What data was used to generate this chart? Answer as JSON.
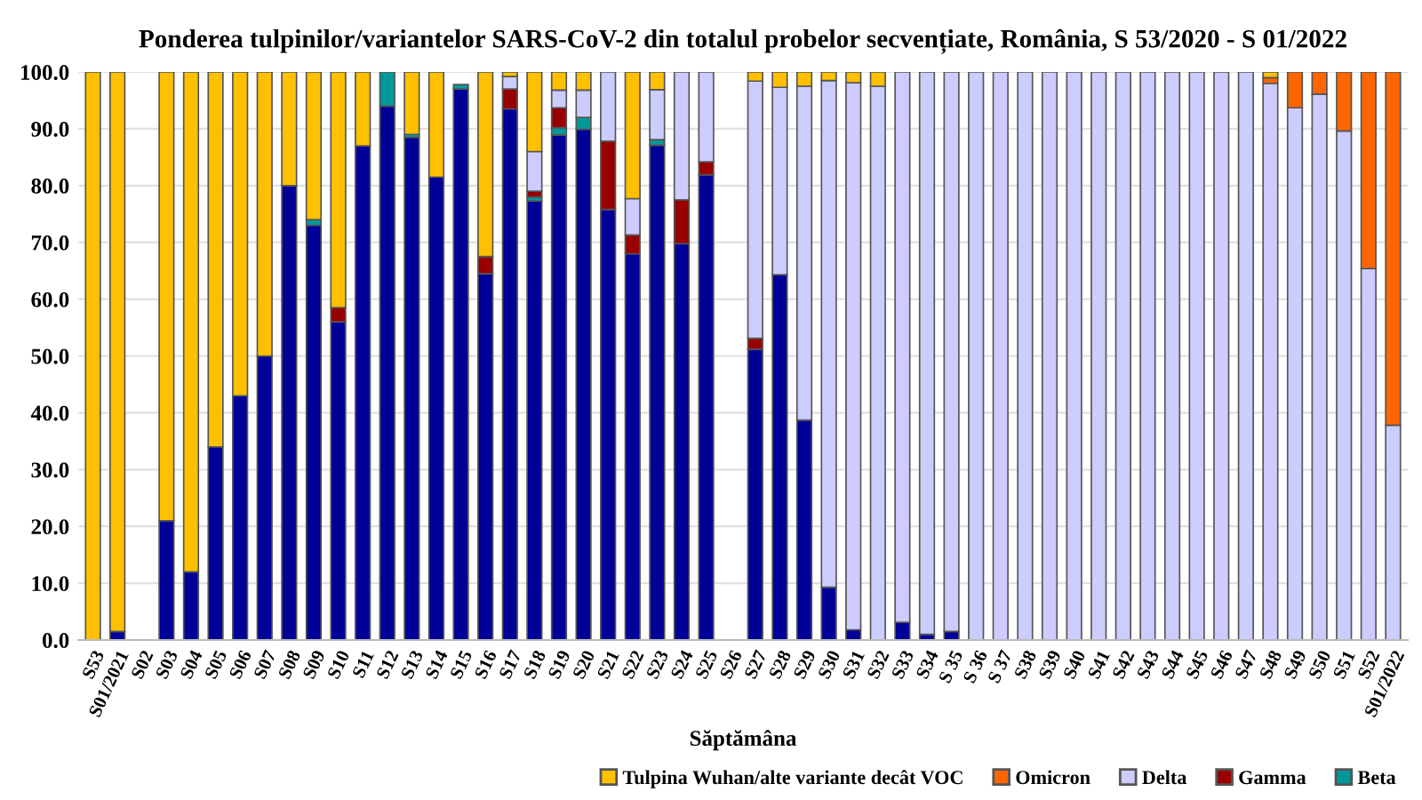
{
  "chart_data": {
    "type": "bar",
    "stacked": true,
    "title": "Ponderea tulpinilor/variantelor SARS-CoV-2 din totalul probelor secvențiate, România, S 53/2020 - S 01/2022",
    "xlabel": "Săptămâna",
    "categories": [
      "S53",
      "S01/2021",
      "S02",
      "S03",
      "S04",
      "S05",
      "S06",
      "S07",
      "S08",
      "S09",
      "S10",
      "S11",
      "S12",
      "S13",
      "S14",
      "S15",
      "S16",
      "S17",
      "S18",
      "S19",
      "S20",
      "S21",
      "S22",
      "S23",
      "S24",
      "S25",
      "S26",
      "S27",
      "S28",
      "S29",
      "S30",
      "S31",
      "S32",
      "S33",
      "S34",
      "S 35",
      "S 36",
      "S 37",
      "S38",
      "S39",
      "S40",
      "S41",
      "S42",
      "S43",
      "S44",
      "S45",
      "S46",
      "S47",
      "S48",
      "S49",
      "S50",
      "S51",
      "S52",
      "S01/2022"
    ],
    "series": [
      {
        "color": "#000099",
        "values": [
          0,
          1.5,
          null,
          21,
          12,
          34,
          43,
          50,
          80,
          73,
          56,
          87,
          94,
          88.5,
          81.5,
          97,
          64.5,
          93.5,
          77.3,
          88.9,
          89.9,
          75.8,
          68,
          87.1,
          69.8,
          81.9,
          null,
          51.2,
          64.3,
          38.7,
          9.3,
          1.8,
          0,
          3.1,
          1,
          1.5,
          0,
          0,
          0,
          0,
          0,
          0,
          0,
          0,
          0,
          0,
          0,
          0,
          0,
          0,
          0,
          0,
          0,
          0
        ]
      },
      {
        "name": "Beta",
        "color": "#009999",
        "values": [
          0,
          0,
          null,
          0,
          0,
          0,
          0,
          0,
          0,
          1,
          0,
          0,
          6,
          0.5,
          0,
          0.8,
          0,
          0,
          0.7,
          1.3,
          2.1,
          0,
          0,
          1,
          0,
          0,
          null,
          0,
          0,
          0,
          0,
          0,
          0,
          0,
          0,
          0,
          0,
          0,
          0,
          0,
          0,
          0,
          0,
          0,
          0,
          0,
          0,
          0,
          0,
          0,
          0,
          0,
          0,
          0
        ]
      },
      {
        "name": "Gamma",
        "color": "#990000",
        "values": [
          0,
          0,
          null,
          0,
          0,
          0,
          0,
          0,
          0,
          0,
          2.5,
          0,
          0,
          0,
          0,
          0,
          3,
          3.5,
          1,
          3.5,
          0,
          12,
          3.3,
          0,
          7.7,
          2.3,
          null,
          1.9,
          0,
          0,
          0,
          0,
          0,
          0,
          0,
          0,
          0,
          0,
          0,
          0,
          0,
          0,
          0,
          0,
          0,
          0,
          0,
          0,
          0,
          0,
          0,
          0,
          0,
          0
        ]
      },
      {
        "name": "Delta",
        "color": "#ccccff",
        "values": [
          0,
          0,
          null,
          0,
          0,
          0,
          0,
          0,
          0,
          0,
          0,
          0,
          0,
          0,
          0,
          0,
          0,
          2.2,
          7,
          3.1,
          4.8,
          12.2,
          6.4,
          8.8,
          22.5,
          15.8,
          null,
          45.3,
          33,
          58.8,
          89.2,
          96.3,
          97.5,
          96.9,
          99,
          98.5,
          100,
          100,
          100,
          100,
          100,
          100,
          100,
          100,
          100,
          100,
          100,
          100,
          98,
          93.7,
          96.1,
          89.6,
          65.4,
          37.8
        ]
      },
      {
        "name": "Omicron",
        "color": "#ff6600",
        "values": [
          0,
          0,
          null,
          0,
          0,
          0,
          0,
          0,
          0,
          0,
          0,
          0,
          0,
          0,
          0,
          0,
          0,
          0,
          0,
          0,
          0,
          0,
          0,
          0,
          0,
          0,
          null,
          0,
          0,
          0,
          0,
          0,
          0,
          0,
          0,
          0,
          0,
          0,
          0,
          0,
          0,
          0,
          0,
          0,
          0,
          0,
          0,
          0,
          1,
          6.3,
          3.9,
          10.4,
          34.6,
          62.2
        ]
      },
      {
        "name": "Tulpina Wuhan/alte variante decât VOC",
        "color": "#ffc000",
        "values": [
          100,
          98.5,
          null,
          79,
          88,
          66,
          57,
          50,
          20,
          26,
          41.5,
          13,
          0,
          11,
          18.5,
          0,
          32.5,
          0.8,
          14,
          3.2,
          3.2,
          0,
          22.3,
          3.1,
          0,
          0,
          null,
          1.6,
          2.7,
          2.5,
          1.5,
          1.9,
          2.5,
          0,
          0,
          0,
          0,
          0,
          0,
          0,
          0,
          0,
          0,
          0,
          0,
          0,
          0,
          0,
          1,
          0,
          0,
          0,
          0,
          0
        ]
      }
    ],
    "ylim": [
      0,
      100
    ],
    "yticks": [
      {
        "value": 0,
        "label": "0.0"
      },
      {
        "value": 10,
        "label": "10.0"
      },
      {
        "value": 20,
        "label": "20.0"
      },
      {
        "value": 30,
        "label": "30.0"
      },
      {
        "value": 40,
        "label": "40.0"
      },
      {
        "value": 50,
        "label": "50.0"
      },
      {
        "value": 60,
        "label": "60.0"
      },
      {
        "value": 70,
        "label": "70.0"
      },
      {
        "value": 80,
        "label": "80.0"
      },
      {
        "value": 90,
        "label": "90.0"
      },
      {
        "value": 100,
        "label": "100.0"
      }
    ],
    "grid": "y",
    "legend": "bottom"
  }
}
